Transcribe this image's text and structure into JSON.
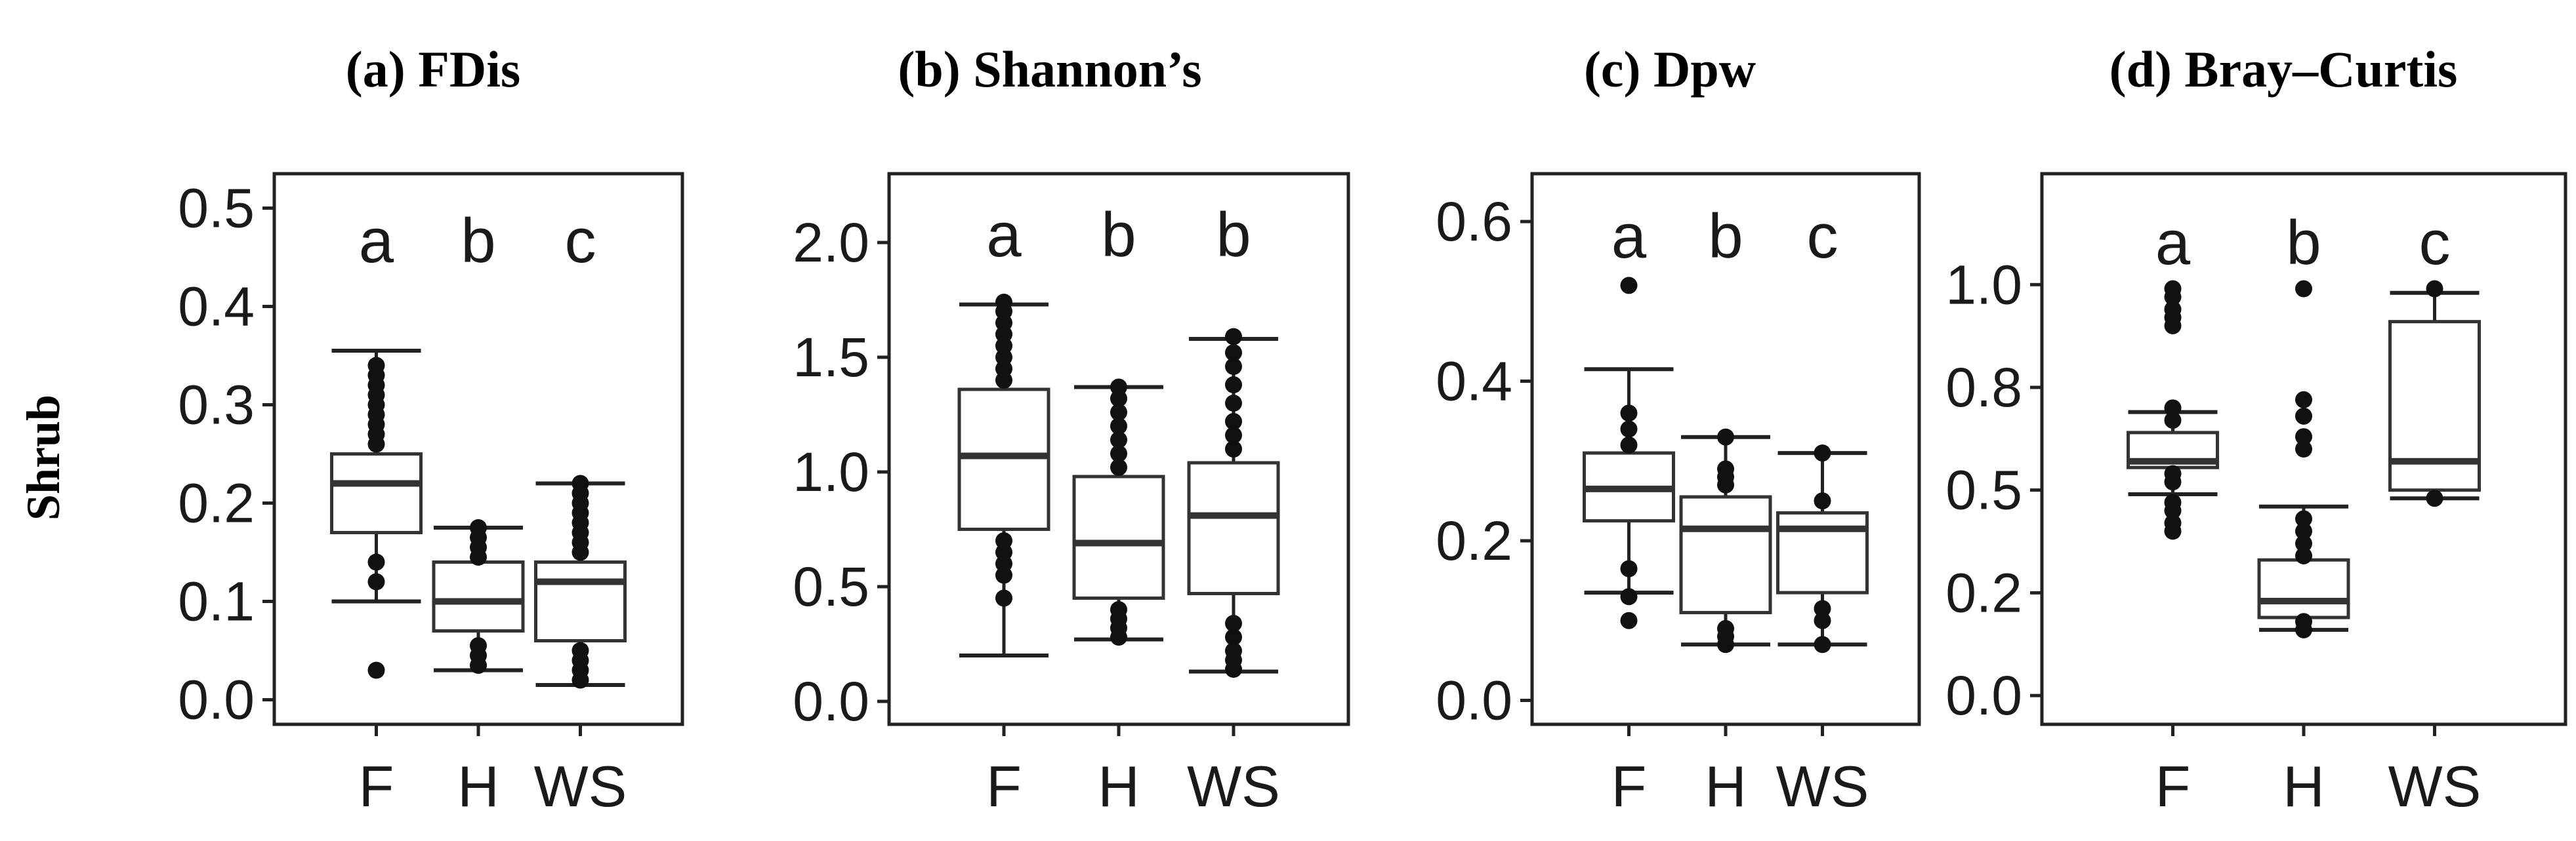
{
  "row_label": "Shrub",
  "chart_data": [
    {
      "type": "box",
      "title": "(a) FDis",
      "categories": [
        "F",
        "H",
        "WS"
      ],
      "yticks": [
        "0.0",
        "0.1",
        "0.2",
        "0.3",
        "0.4",
        "0.5"
      ],
      "ytick_values": [
        0.0,
        0.1,
        0.2,
        0.3,
        0.4,
        0.5
      ],
      "ylim": [
        -0.025,
        0.535
      ],
      "letters": [
        "a",
        "b",
        "c"
      ],
      "letter_y": 0.445,
      "boxes": [
        {
          "q1": 0.17,
          "median": 0.22,
          "q3": 0.25,
          "whisker_low": 0.1,
          "whisker_high": 0.355,
          "outliers": [
            0.03,
            0.12,
            0.14,
            0.26,
            0.27,
            0.28,
            0.29,
            0.3,
            0.31,
            0.32,
            0.33,
            0.34
          ]
        },
        {
          "q1": 0.07,
          "median": 0.1,
          "q3": 0.14,
          "whisker_low": 0.03,
          "whisker_high": 0.175,
          "outliers": [
            0.035,
            0.045,
            0.055,
            0.145,
            0.155,
            0.165,
            0.175
          ]
        },
        {
          "q1": 0.06,
          "median": 0.12,
          "q3": 0.14,
          "whisker_low": 0.015,
          "whisker_high": 0.22,
          "outliers": [
            0.02,
            0.03,
            0.04,
            0.05,
            0.15,
            0.16,
            0.17,
            0.18,
            0.19,
            0.2,
            0.21,
            0.22
          ]
        }
      ]
    },
    {
      "type": "box",
      "title": "(b) Shannon’s",
      "categories": [
        "F",
        "H",
        "WS"
      ],
      "yticks": [
        "0.0",
        "0.5",
        "1.0",
        "1.5",
        "2.0"
      ],
      "ytick_values": [
        0.0,
        0.5,
        1.0,
        1.5,
        2.0
      ],
      "ylim": [
        -0.1,
        2.3
      ],
      "letters": [
        "a",
        "b",
        "b"
      ],
      "letter_y": 1.94,
      "boxes": [
        {
          "q1": 0.75,
          "median": 1.07,
          "q3": 1.36,
          "whisker_low": 0.2,
          "whisker_high": 1.73,
          "outliers": [
            0.45,
            0.55,
            0.6,
            0.65,
            0.7,
            1.4,
            1.45,
            1.5,
            1.55,
            1.6,
            1.65,
            1.7,
            1.74
          ]
        },
        {
          "q1": 0.45,
          "median": 0.69,
          "q3": 0.98,
          "whisker_low": 0.27,
          "whisker_high": 1.37,
          "outliers": [
            0.28,
            0.32,
            0.36,
            0.4,
            1.02,
            1.08,
            1.14,
            1.2,
            1.26,
            1.32,
            1.37
          ]
        },
        {
          "q1": 0.47,
          "median": 0.81,
          "q3": 1.04,
          "whisker_low": 0.13,
          "whisker_high": 1.58,
          "outliers": [
            0.14,
            0.18,
            0.22,
            0.28,
            0.34,
            1.1,
            1.16,
            1.22,
            1.3,
            1.38,
            1.46,
            1.52,
            1.59
          ]
        }
      ]
    },
    {
      "type": "box",
      "title": "(c) Dpw",
      "categories": [
        "F",
        "H",
        "WS"
      ],
      "yticks": [
        "0.0",
        "0.2",
        "0.4",
        "0.6"
      ],
      "ytick_values": [
        0.0,
        0.2,
        0.4,
        0.6
      ],
      "ylim": [
        -0.03,
        0.66
      ],
      "letters": [
        "a",
        "b",
        "c"
      ],
      "letter_y": 0.555,
      "boxes": [
        {
          "q1": 0.225,
          "median": 0.265,
          "q3": 0.31,
          "whisker_low": 0.135,
          "whisker_high": 0.415,
          "outliers": [
            0.1,
            0.13,
            0.165,
            0.32,
            0.34,
            0.36,
            0.52
          ]
        },
        {
          "q1": 0.11,
          "median": 0.215,
          "q3": 0.255,
          "whisker_low": 0.07,
          "whisker_high": 0.33,
          "outliers": [
            0.07,
            0.08,
            0.09,
            0.27,
            0.28,
            0.29,
            0.33
          ]
        },
        {
          "q1": 0.135,
          "median": 0.215,
          "q3": 0.235,
          "whisker_low": 0.07,
          "whisker_high": 0.31,
          "outliers": [
            0.07,
            0.1,
            0.115,
            0.25,
            0.31
          ]
        }
      ]
    },
    {
      "type": "box",
      "title": "(d) Bray–Curtis",
      "categories": [
        "F",
        "H",
        "WS"
      ],
      "yticks": [
        "0.0",
        "0.2",
        "0.5",
        "0.8",
        "1.0"
      ],
      "ytick_values": [
        0.0,
        0.25,
        0.5,
        0.75,
        1.0
      ],
      "ylim": [
        -0.07,
        1.27
      ],
      "letters": [
        "a",
        "b",
        "c"
      ],
      "letter_y": 1.05,
      "boxes": [
        {
          "q1": 0.555,
          "median": 0.57,
          "q3": 0.64,
          "whisker_low": 0.49,
          "whisker_high": 0.69,
          "outliers": [
            0.4,
            0.42,
            0.45,
            0.47,
            0.52,
            0.54,
            0.67,
            0.7,
            0.9,
            0.92,
            0.94,
            0.97,
            0.99
          ]
        },
        {
          "q1": 0.19,
          "median": 0.23,
          "q3": 0.33,
          "whisker_low": 0.16,
          "whisker_high": 0.46,
          "outliers": [
            0.16,
            0.18,
            0.34,
            0.37,
            0.4,
            0.43,
            0.6,
            0.63,
            0.68,
            0.72,
            0.99
          ]
        },
        {
          "q1": 0.5,
          "median": 0.57,
          "q3": 0.91,
          "whisker_low": 0.48,
          "whisker_high": 0.98,
          "outliers": [
            0.48,
            0.99
          ]
        }
      ]
    }
  ]
}
